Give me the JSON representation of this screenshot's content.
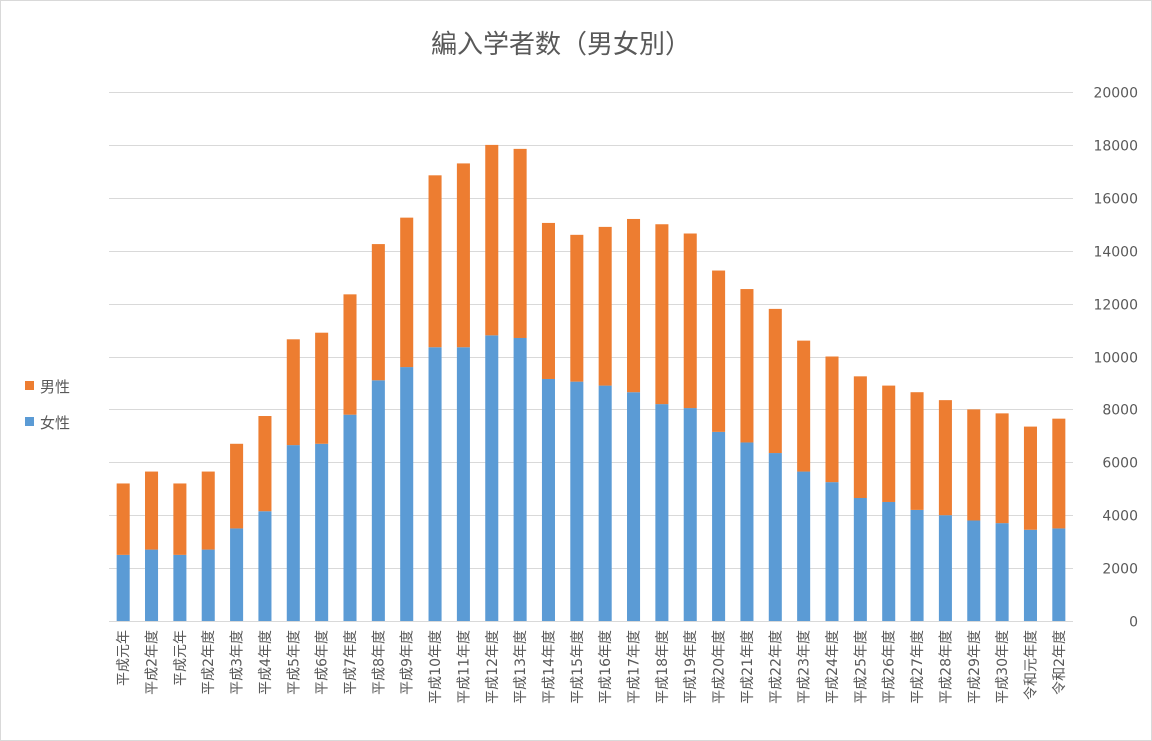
{
  "chart_data": {
    "type": "bar",
    "stacked": true,
    "title": "編入学者数（男女別）",
    "xlabel": "",
    "ylabel": "",
    "ylim": [
      0,
      20000
    ],
    "yticks": [
      0,
      2000,
      4000,
      6000,
      8000,
      10000,
      12000,
      14000,
      16000,
      18000,
      20000
    ],
    "grid": true,
    "legend_position": "left",
    "categories": [
      "平成元年",
      "平成2年度",
      "平成元年",
      "平成2年度",
      "平成3年度",
      "平成4年度",
      "平成5年度",
      "平成6年度",
      "平成7年度",
      "平成8年度",
      "平成9年度",
      "平成10年度",
      "平成11年度",
      "平成12年度",
      "平成13年度",
      "平成14年度",
      "平成15年度",
      "平成16年度",
      "平成17年度",
      "平成18年度",
      "平成19年度",
      "平成20年度",
      "平成21年度",
      "平成22年度",
      "平成23年度",
      "平成24年度",
      "平成25年度",
      "平成26年度",
      "平成27年度",
      "平成28年度",
      "平成29年度",
      "平成30年度",
      "令和元年度",
      "令和2年度"
    ],
    "series": [
      {
        "name": "女性",
        "color": "#5b9bd5",
        "values": [
          2500,
          2700,
          2500,
          2700,
          3500,
          4150,
          6650,
          6700,
          7800,
          9100,
          9600,
          10350,
          10350,
          10800,
          10700,
          9150,
          9050,
          8900,
          8650,
          8200,
          8050,
          7150,
          6750,
          6350,
          5650,
          5250,
          4650,
          4500,
          4200,
          4000,
          3800,
          3700,
          3450,
          3500
        ]
      },
      {
        "name": "男性",
        "color": "#ed7d31",
        "values": [
          2700,
          2950,
          2700,
          2950,
          3200,
          3600,
          4000,
          4200,
          4550,
          5150,
          5650,
          6500,
          6950,
          7200,
          7150,
          5900,
          5550,
          6000,
          6550,
          6800,
          6600,
          6100,
          5800,
          5450,
          4950,
          4750,
          4600,
          4400,
          4450,
          4350,
          4200,
          4150,
          3900,
          4150
        ]
      }
    ]
  }
}
